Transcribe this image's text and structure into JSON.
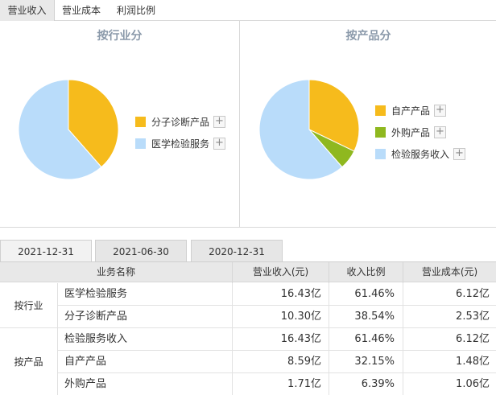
{
  "top_tabs": [
    "营业收入",
    "营业成本",
    "利润比例"
  ],
  "left_chart": {
    "title": "按行业分",
    "items": [
      {
        "label": "分子诊断产品",
        "color": "#f6bb1c",
        "percent": 38.54
      },
      {
        "label": "医学检验服务",
        "color": "#b9dcfa",
        "percent": 61.46
      }
    ]
  },
  "right_chart": {
    "title": "按产品分",
    "items": [
      {
        "label": "自产产品",
        "color": "#f6bb1c",
        "percent": 32.15
      },
      {
        "label": "外购产品",
        "color": "#8fb81f",
        "percent": 6.39
      },
      {
        "label": "检验服务收入",
        "color": "#b9dcfa",
        "percent": 61.46
      }
    ]
  },
  "plus_glyph": "+",
  "date_tabs": [
    "2021-12-31",
    "2021-06-30",
    "2020-12-31"
  ],
  "table": {
    "headers": [
      "业务名称",
      "营业收入(元)",
      "收入比例",
      "营业成本(元)"
    ],
    "groups": [
      {
        "label": "按行业",
        "rows": [
          {
            "name": "医学检验服务",
            "revenue": "16.43亿",
            "ratio": "61.46%",
            "cost": "6.12亿"
          },
          {
            "name": "分子诊断产品",
            "revenue": "10.30亿",
            "ratio": "38.54%",
            "cost": "2.53亿"
          }
        ]
      },
      {
        "label": "按产品",
        "rows": [
          {
            "name": "检验服务收入",
            "revenue": "16.43亿",
            "ratio": "61.46%",
            "cost": "6.12亿"
          },
          {
            "name": "自产产品",
            "revenue": "8.59亿",
            "ratio": "32.15%",
            "cost": "1.48亿"
          },
          {
            "name": "外购产品",
            "revenue": "1.71亿",
            "ratio": "6.39%",
            "cost": "1.06亿"
          }
        ]
      }
    ]
  },
  "chart_data": [
    {
      "type": "pie",
      "title": "按行业分",
      "categories": [
        "分子诊断产品",
        "医学检验服务"
      ],
      "values": [
        38.54,
        61.46
      ]
    },
    {
      "type": "pie",
      "title": "按产品分",
      "categories": [
        "自产产品",
        "外购产品",
        "检验服务收入"
      ],
      "values": [
        32.15,
        6.39,
        61.46
      ]
    }
  ]
}
